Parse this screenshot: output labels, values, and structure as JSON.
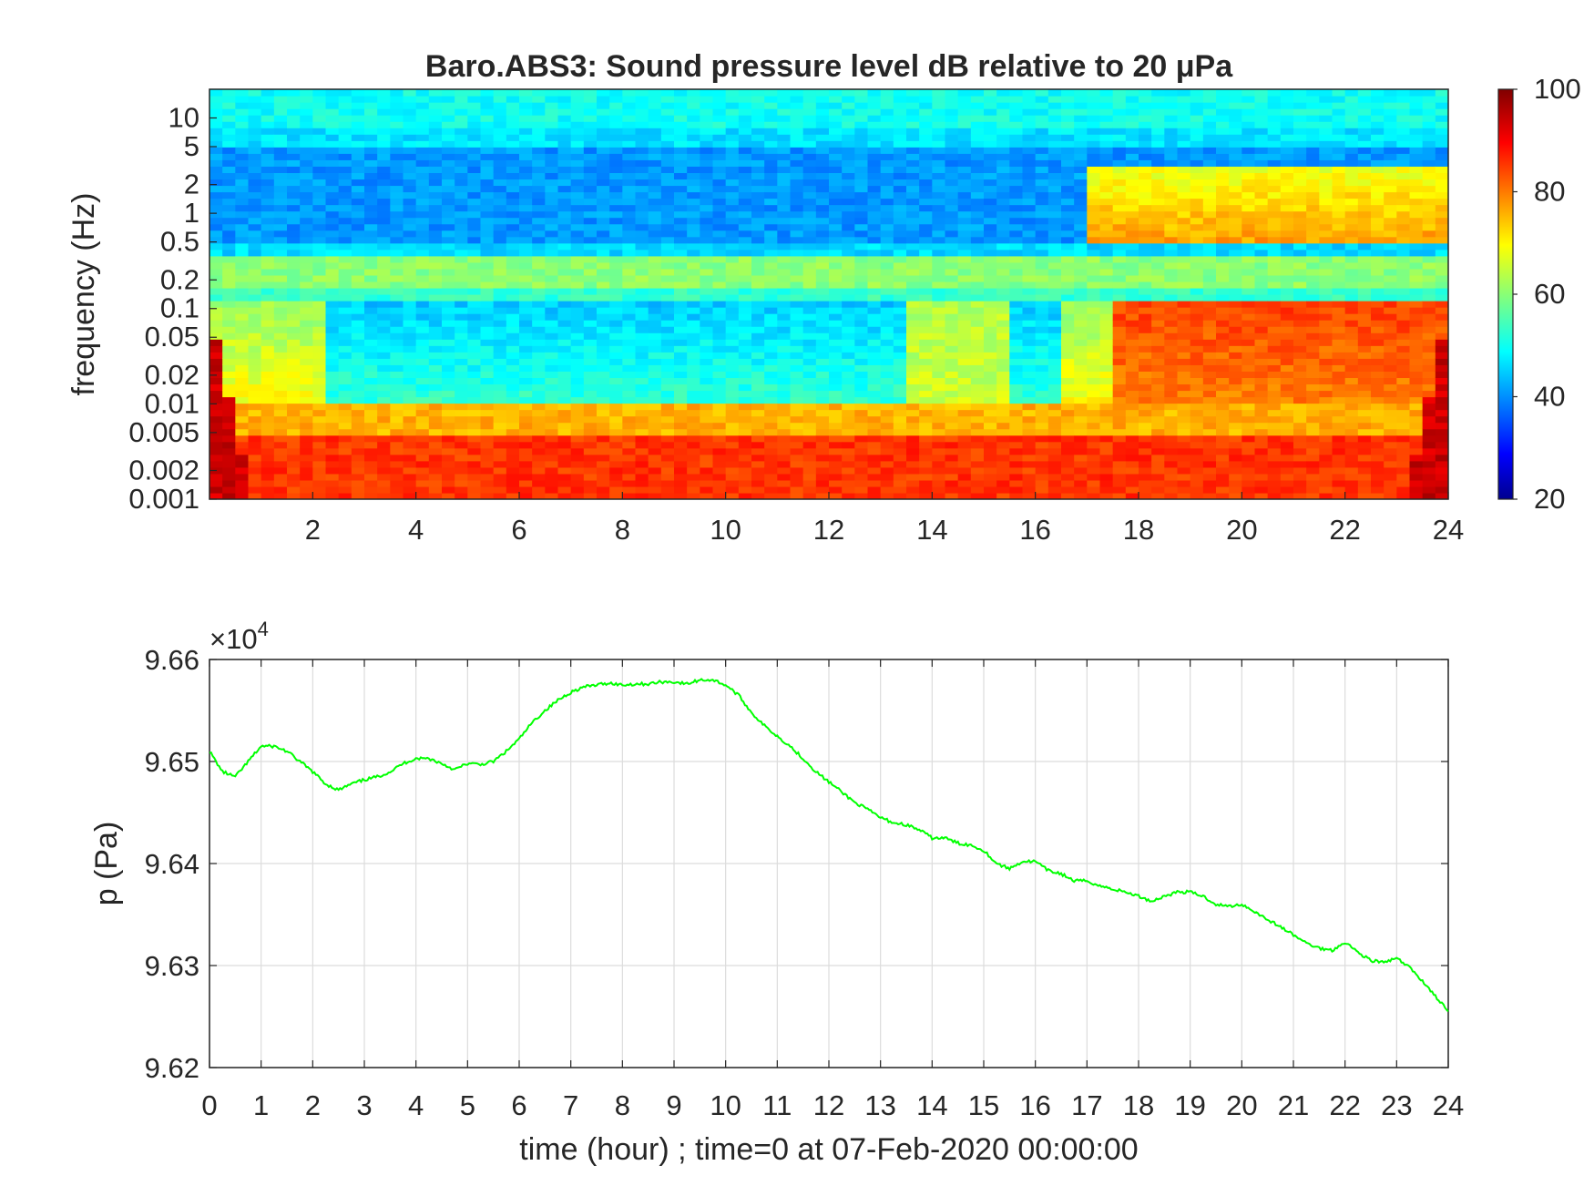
{
  "chart_data": [
    {
      "type": "heatmap",
      "title": "Baro.ABS3: Sound pressure level dB relative to 20 μPa",
      "xlabel": "",
      "ylabel": "frequency (Hz)",
      "xlim": [
        0,
        24
      ],
      "ylim": [
        0.001,
        20
      ],
      "yscale": "log",
      "x_ticks": [
        2,
        4,
        6,
        8,
        10,
        12,
        14,
        16,
        18,
        20,
        22,
        24
      ],
      "y_ticks": [
        0.001,
        0.002,
        0.005,
        0.01,
        0.02,
        0.05,
        0.1,
        0.2,
        0.5,
        1,
        2,
        5,
        10
      ],
      "y_tick_labels": [
        "0.001",
        "0.002",
        "0.005",
        "0.01",
        "0.02",
        "0.05",
        "0.1",
        "0.2",
        "0.5",
        "1",
        "2",
        "5",
        "10"
      ],
      "colorbar": {
        "ticks": [
          20,
          40,
          60,
          80,
          100
        ],
        "range": [
          20,
          100
        ],
        "colormap": "jet"
      },
      "description_of_levels": [
        {
          "band_hz": "5-20",
          "level_db": 50
        },
        {
          "band_hz": "0.5-5",
          "level_db": 42
        },
        {
          "band_hz": "0.15-0.4",
          "level_db": 62
        },
        {
          "band_hz": "0.01-0.12 (0-13 h)",
          "level_db": 50
        },
        {
          "band_hz": "0.01-0.12 (17-24 h)",
          "level_db": 85
        },
        {
          "band_hz": "0.001-0.005",
          "level_db": 88
        }
      ],
      "grid": false
    },
    {
      "type": "line",
      "title": "",
      "xlabel": "time (hour) ; time=0 at 07-Feb-2020 00:00:00",
      "ylabel": "p (Pa)",
      "exponent_label": "×10",
      "exponent": "4",
      "xlim": [
        0,
        24
      ],
      "ylim": [
        96200,
        96600
      ],
      "x_ticks": [
        0,
        1,
        2,
        3,
        4,
        5,
        6,
        7,
        8,
        9,
        10,
        11,
        12,
        13,
        14,
        15,
        16,
        17,
        18,
        19,
        20,
        21,
        22,
        23,
        24
      ],
      "y_ticks": [
        96200,
        96300,
        96400,
        96500,
        96600
      ],
      "y_tick_labels": [
        "9.62",
        "9.63",
        "9.64",
        "9.65",
        "9.66"
      ],
      "grid": true,
      "series": [
        {
          "color": "#00ff00",
          "x": [
            0,
            0.25,
            0.5,
            0.75,
            1,
            1.25,
            1.5,
            1.75,
            2,
            2.25,
            2.5,
            2.75,
            3,
            3.25,
            3.5,
            3.75,
            4,
            4.25,
            4.5,
            4.75,
            5,
            5.25,
            5.5,
            5.75,
            6,
            6.25,
            6.5,
            6.75,
            7,
            7.25,
            7.5,
            7.75,
            8,
            8.25,
            8.5,
            8.75,
            9,
            9.25,
            9.5,
            9.75,
            10,
            10.25,
            10.5,
            10.75,
            11,
            11.25,
            11.5,
            11.75,
            12,
            12.25,
            12.5,
            12.75,
            13,
            13.25,
            13.5,
            13.75,
            14,
            14.25,
            14.5,
            14.75,
            15,
            15.25,
            15.5,
            15.75,
            16,
            16.25,
            16.5,
            16.75,
            17,
            17.25,
            17.5,
            17.75,
            18,
            18.25,
            18.5,
            18.75,
            19,
            19.25,
            19.5,
            19.75,
            20,
            20.25,
            20.5,
            20.75,
            21,
            21.25,
            21.5,
            21.75,
            22,
            22.25,
            22.5,
            22.75,
            23,
            23.25,
            23.5,
            23.75,
            24
          ],
          "y": [
            96510,
            96490,
            96485,
            96500,
            96515,
            96515,
            96510,
            96500,
            96490,
            96478,
            96472,
            96478,
            96482,
            96485,
            96490,
            96498,
            96503,
            96503,
            96498,
            96492,
            96498,
            96497,
            96500,
            96510,
            96522,
            96538,
            96550,
            96560,
            96568,
            96573,
            96575,
            96577,
            96575,
            96576,
            96576,
            96578,
            96578,
            96576,
            96580,
            96580,
            96575,
            96565,
            96548,
            96535,
            96525,
            96515,
            96503,
            96490,
            96480,
            96470,
            96460,
            96453,
            96445,
            96440,
            96438,
            96433,
            96425,
            96425,
            96420,
            96418,
            96413,
            96400,
            96395,
            96402,
            96402,
            96393,
            96390,
            96383,
            96383,
            96378,
            96375,
            96372,
            96368,
            96363,
            96368,
            96372,
            96372,
            96368,
            96360,
            96358,
            96360,
            96353,
            96345,
            96338,
            96330,
            96322,
            96317,
            96315,
            96323,
            96313,
            96305,
            96303,
            96307,
            96298,
            96285,
            96270,
            96255
          ]
        }
      ]
    }
  ]
}
